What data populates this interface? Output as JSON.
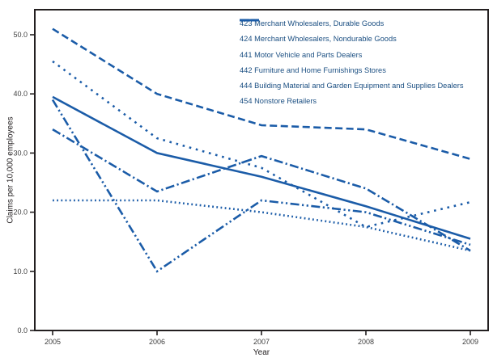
{
  "chart_data": {
    "type": "line",
    "x": [
      2005,
      2006,
      2007,
      2008,
      2009
    ],
    "series": [
      {
        "name": "423 Merchant Wholesalers, Durable Goods",
        "style": "solid",
        "values": [
          39.5,
          30.0,
          26.0,
          21.0,
          15.5
        ]
      },
      {
        "name": "424 Merchant Wholesalers, Nondurable Goods",
        "style": "dash",
        "values": [
          51.0,
          40.0,
          34.7,
          34.0,
          29.0
        ]
      },
      {
        "name": "441 Motor Vehicle and Parts Dealers",
        "style": "dot",
        "values": [
          22.0,
          22.0,
          20.0,
          17.5,
          13.5
        ]
      },
      {
        "name": "442 Furniture and Home Furnishings Stores",
        "style": "sparse-dot",
        "values": [
          45.5,
          32.5,
          27.5,
          17.5,
          21.7
        ]
      },
      {
        "name": "444 Building Material and Garden Equipment and Supplies Dealers",
        "style": "dash-dot",
        "values": [
          34.0,
          23.5,
          29.5,
          24.0,
          13.5
        ]
      },
      {
        "name": "454 Nonstore Retailers",
        "style": "dash-dot-dot",
        "values": [
          39.0,
          10.0,
          22.0,
          20.0,
          14.5
        ]
      }
    ],
    "xlabel": "Year",
    "ylabel": "Claims per 10,000 employees",
    "ylim": [
      0,
      54
    ],
    "yticks": [
      0,
      10,
      20,
      30,
      40,
      50
    ],
    "ytick_labels": [
      "0.0",
      "10.0",
      "20.0",
      "30.0",
      "40.0",
      "50.0"
    ],
    "xtick_labels": [
      "2005",
      "2006",
      "2007",
      "2008",
      "2009"
    ],
    "grid": false,
    "legend_position": "top-center-inside",
    "line_color": "#1b5ca8",
    "frame_color": "#231f20",
    "tick_label_color": "#404040",
    "legend_text_color": "#1b4f82"
  }
}
